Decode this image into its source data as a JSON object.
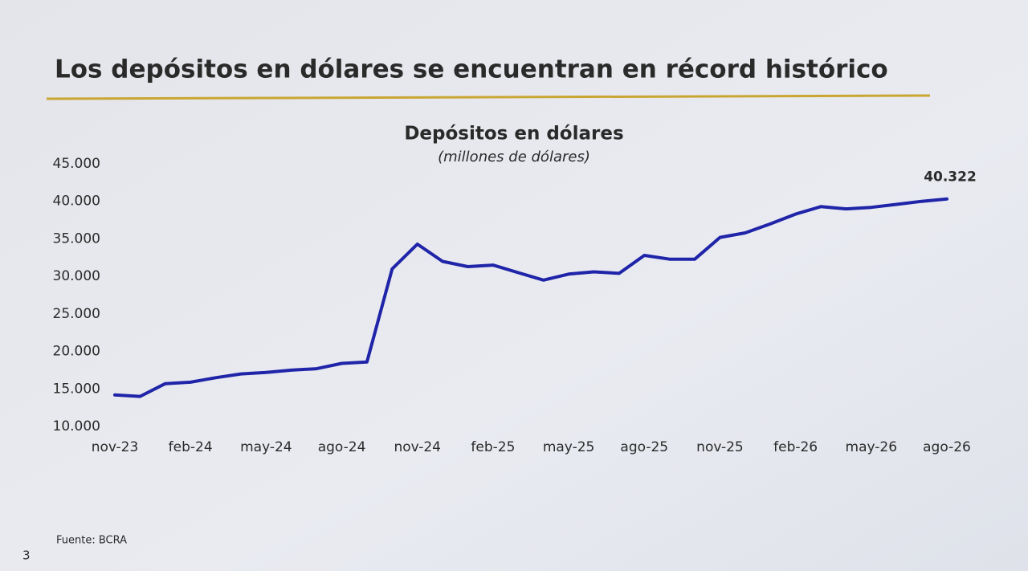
{
  "slide": {
    "title": "Los depósitos en dólares se encuentran en récord histórico",
    "source": "Fuente: BCRA",
    "page_number": "3"
  },
  "chart_data": {
    "type": "line",
    "title": "Depósitos en dólares",
    "subtitle": "(millones de dólares)",
    "categories": [
      "nov-23",
      null,
      null,
      "feb-24",
      null,
      null,
      "may-24",
      null,
      null,
      "ago-24",
      null,
      null,
      "nov-24",
      null,
      null,
      "feb-25",
      null,
      null,
      "may-25",
      null,
      null,
      "ago-25",
      null,
      null,
      "nov-25",
      null,
      null,
      "feb-26",
      null,
      null,
      "may-26",
      null,
      null,
      "ago-26"
    ],
    "series": [
      {
        "name": "Depósitos en dólares",
        "color": "#1f24a8",
        "values": [
          14200,
          14000,
          15700,
          15900,
          16500,
          17000,
          17200,
          17500,
          17700,
          18400,
          18600,
          31000,
          34300,
          32000,
          31300,
          31500,
          30500,
          29500,
          30300,
          30600,
          30400,
          32800,
          32300,
          32300,
          35200,
          35800,
          37000,
          38300,
          39300,
          39000,
          39200,
          39600,
          40000,
          40322
        ],
        "value_labels": [
          null,
          null,
          null,
          null,
          null,
          null,
          null,
          null,
          null,
          null,
          null,
          null,
          null,
          null,
          null,
          null,
          null,
          null,
          null,
          null,
          null,
          null,
          null,
          null,
          null,
          null,
          null,
          null,
          null,
          null,
          null,
          null,
          null,
          "40.322"
        ]
      }
    ],
    "ylim": [
      10000,
      45000
    ],
    "yticks": [
      {
        "value": 10000,
        "label": "10.000"
      },
      {
        "value": 15000,
        "label": "15.000"
      },
      {
        "value": 20000,
        "label": "20.000"
      },
      {
        "value": 25000,
        "label": "25.000"
      },
      {
        "value": 30000,
        "label": "30.000"
      },
      {
        "value": 35000,
        "label": "35.000"
      },
      {
        "value": 40000,
        "label": "40.000"
      },
      {
        "value": 45000,
        "label": "45.000"
      }
    ],
    "grid": false
  }
}
